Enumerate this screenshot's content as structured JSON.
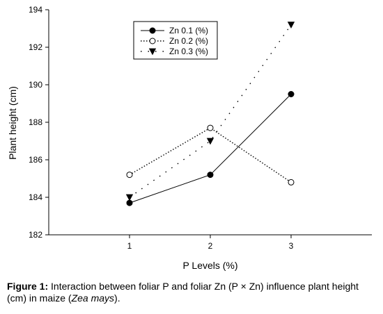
{
  "chart_data": {
    "type": "line",
    "x": [
      1,
      2,
      3
    ],
    "xlabel": "P Levels (%)",
    "ylabel": "Plant height (cm)",
    "xlim": [
      0,
      4
    ],
    "ylim": [
      182,
      194
    ],
    "xticks": [
      "1",
      "2",
      "3"
    ],
    "yticks": [
      "182",
      "184",
      "186",
      "188",
      "190",
      "192",
      "194"
    ],
    "grid": false,
    "legend_position": "top-center",
    "series": [
      {
        "name": "Zn 0.1 (%)",
        "values": [
          183.7,
          185.2,
          189.5
        ],
        "line": "solid",
        "marker": "filled-circle"
      },
      {
        "name": "Zn 0.2 (%)",
        "values": [
          185.2,
          187.7,
          184.8
        ],
        "line": "dotted",
        "marker": "open-circle"
      },
      {
        "name": "Zn 0.3 (%)",
        "values": [
          184.0,
          187.0,
          193.2
        ],
        "line": "sparse-dotted",
        "marker": "filled-triangle-down"
      }
    ]
  },
  "caption": {
    "label": "Figure 1:",
    "text_before": " Interaction between foliar P and foliar Zn (P × Zn) influence plant height (cm) in maize (",
    "species": "Zea mays",
    "text_after": ")."
  }
}
